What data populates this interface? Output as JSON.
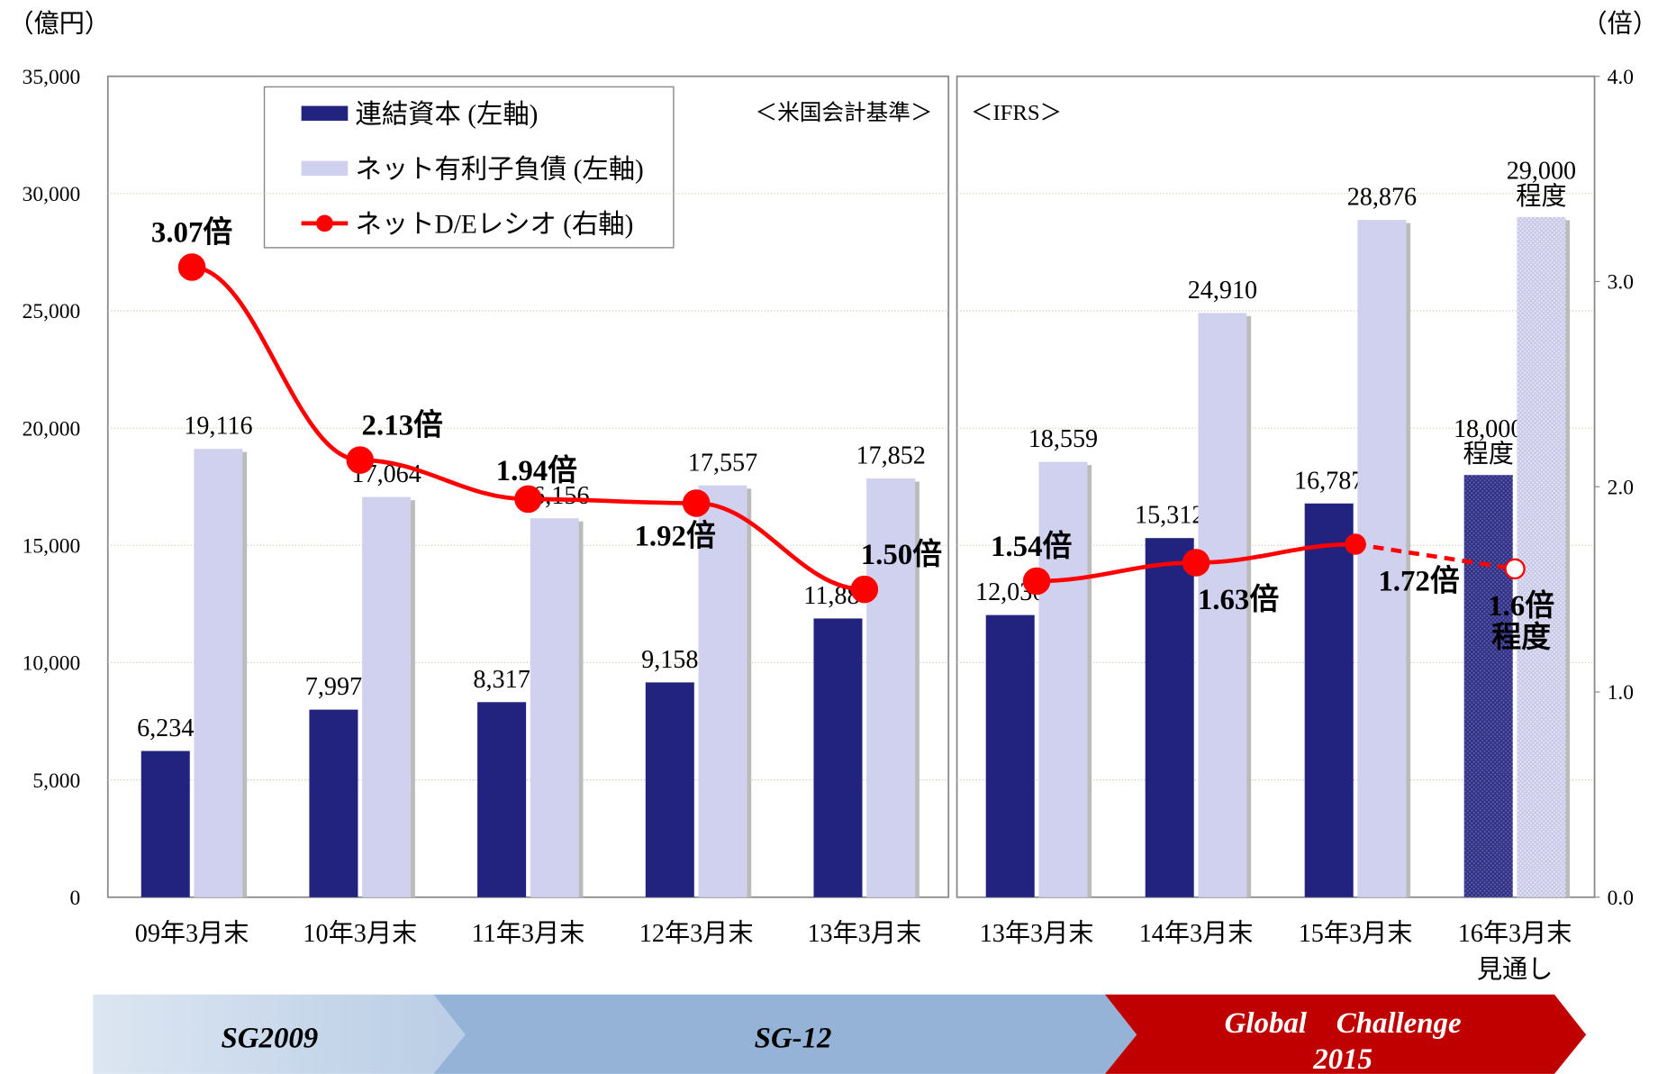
{
  "chart_data": {
    "type": "bar_line",
    "y_unit": "（億円）",
    "y2_unit": "（倍）",
    "categories": [
      "09年3月末",
      "10年3月末",
      "11年3月末",
      "12年3月末",
      "13年3月末",
      "13年3月末",
      "14年3月末",
      "15年3月末",
      "16年3月末\n見通し"
    ],
    "sections": [
      {
        "label": "＜米国会計基準＞",
        "start": 0,
        "end": 4
      },
      {
        "label": "＜IFRS＞",
        "start": 5,
        "end": 8
      }
    ],
    "forecast_index": 8,
    "series": [
      {
        "name": "連結資本 (左軸)",
        "color": "#22227f",
        "values": [
          6234,
          7997,
          8317,
          9158,
          11884,
          12030,
          15312,
          16787,
          18000
        ],
        "value_labels": [
          "6,234",
          "7,997",
          "8,317",
          "9,158",
          "11,884",
          "12,030",
          "15,312",
          "16,787",
          "18,000\n程度"
        ]
      },
      {
        "name": "ネット有利子負債 (左軸)",
        "color": "#d0d0ef",
        "values": [
          19116,
          17064,
          16156,
          17557,
          17852,
          18559,
          24910,
          28876,
          29000
        ],
        "value_labels": [
          "19,116",
          "17,064",
          "16,156",
          "17,557",
          "17,852",
          "18,559",
          "24,910",
          "28,876",
          "29,000\n程度"
        ]
      },
      {
        "name": "ネットD/Eレシオ (右軸)",
        "color": "#ff0000",
        "axis": "y2",
        "values": [
          3.07,
          2.13,
          1.94,
          1.92,
          1.5,
          1.54,
          1.63,
          1.72,
          1.6
        ],
        "value_labels": [
          "3.07倍",
          "2.13倍",
          "1.94倍",
          "1.92倍",
          "1.50倍",
          "1.54倍",
          "1.63倍",
          "1.72倍",
          "1.6倍\n程度"
        ]
      }
    ],
    "ylim": [
      0,
      35000
    ],
    "yticks": [
      0,
      {
        "value": 5000,
        "label": "5,000"
      },
      {
        "value": 10000,
        "label": "10,000"
      },
      {
        "value": 15000,
        "label": "15,000"
      },
      {
        "value": 20000,
        "label": "20,000"
      },
      {
        "value": 25000,
        "label": "25,000"
      },
      {
        "value": 30000,
        "label": "30,000"
      },
      {
        "value": 35000,
        "label": "35,000"
      }
    ],
    "y2lim": [
      0,
      4
    ],
    "y2ticks": [
      {
        "value": 0,
        "label": "0.0"
      },
      {
        "value": 1,
        "label": "1.0"
      },
      {
        "value": 2,
        "label": "2.0"
      },
      {
        "value": 3,
        "label": "3.0"
      },
      {
        "value": 4,
        "label": "4.0"
      }
    ],
    "grid": true,
    "phases": [
      "SG2009",
      "SG-12",
      "Global　Challenge\n2015"
    ]
  }
}
